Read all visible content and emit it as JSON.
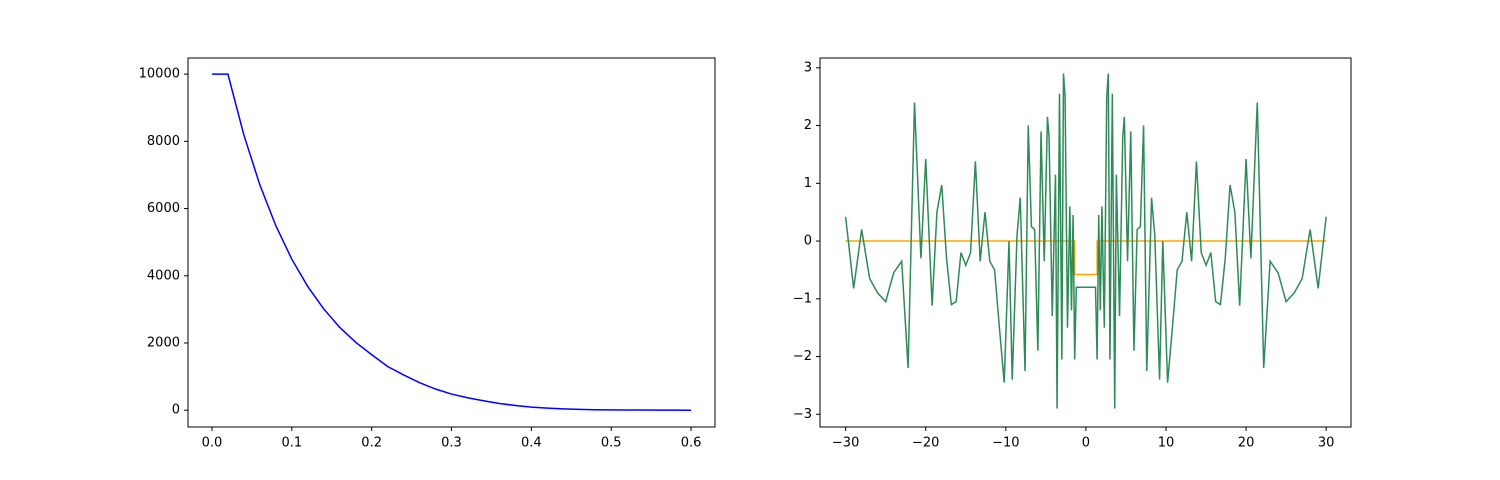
{
  "chart_data": [
    {
      "type": "line",
      "xlim": [
        -0.03,
        0.63
      ],
      "ylim": [
        -500,
        10480
      ],
      "xticks": [
        {
          "value": 0,
          "label": "0.0"
        },
        0.1,
        0.2,
        0.3,
        0.4,
        0.5,
        0.6
      ],
      "yticks": [
        0,
        2000,
        4000,
        6000,
        8000,
        10000
      ],
      "series": [
        {
          "color": "#0000ff",
          "x": [
            0,
            0.02,
            0.04,
            0.06,
            0.08,
            0.1,
            0.12,
            0.14,
            0.16,
            0.18,
            0.2,
            0.22,
            0.24,
            0.26,
            0.28,
            0.3,
            0.32,
            0.34,
            0.36,
            0.38,
            0.4,
            0.42,
            0.44,
            0.46,
            0.48,
            0.5,
            0.52,
            0.54,
            0.56,
            0.58,
            0.6
          ],
          "values": [
            10000,
            10000,
            8187,
            6703,
            5488,
            4493,
            3679,
            3012,
            2466,
            2019,
            1653,
            1300,
            1050,
            820,
            630,
            480,
            370,
            280,
            200,
            140,
            90,
            60,
            40,
            25,
            15,
            10,
            6,
            4,
            2,
            1,
            0
          ]
        }
      ]
    },
    {
      "type": "line",
      "xlim": [
        -33.2,
        33.1
      ],
      "ylim": [
        -3.22,
        3.17
      ],
      "xticks": [
        {
          "value": -30,
          "label": "−30"
        },
        {
          "value": -20,
          "label": "−20"
        },
        {
          "value": -10,
          "label": "−10"
        },
        0,
        10,
        20,
        30
      ],
      "yticks": [
        {
          "value": -3,
          "label": "−3"
        },
        {
          "value": -2,
          "label": "−2"
        },
        {
          "value": -1,
          "label": "−1"
        },
        0,
        1,
        2,
        3
      ],
      "series": [
        {
          "color": "#ffa500",
          "x": [
            -30,
            -1.4,
            -1.4,
            1.4,
            1.4,
            30
          ],
          "values": [
            0,
            0,
            -0.58,
            -0.58,
            0,
            0
          ]
        },
        {
          "color": "#2e8b57",
          "x": [
            -30,
            -29,
            -28,
            -27,
            -26,
            -25,
            -24,
            -23,
            -22.2,
            -21.4,
            -20.6,
            -20,
            -19.2,
            -18.6,
            -18,
            -17.4,
            -16.8,
            -16.2,
            -15.6,
            -15,
            -14.4,
            -13.8,
            -13.2,
            -12.6,
            -12,
            -11.4,
            -10.8,
            -10.2,
            -9.6,
            -9.2,
            -8.6,
            -8.2,
            -7.6,
            -7.2,
            -6.8,
            -6.4,
            -6,
            -5.6,
            -5.2,
            -4.8,
            -4.6,
            -4.2,
            -3.8,
            -3.6,
            -3.3,
            -3,
            -2.8,
            -2.6,
            -2.3,
            -2,
            -1.8,
            -1.6,
            -1.4,
            -1.2,
            0,
            1.2,
            1.4,
            1.6,
            1.8,
            2,
            2.3,
            2.6,
            2.8,
            3,
            3.3,
            3.6,
            3.8,
            4.2,
            4.6,
            4.8,
            5.2,
            5.6,
            6,
            6.4,
            6.8,
            7.2,
            7.6,
            8.2,
            8.6,
            9.2,
            9.6,
            10.2,
            10.8,
            11.4,
            12,
            12.6,
            13.2,
            13.8,
            14.4,
            15,
            15.6,
            16.2,
            16.8,
            17.4,
            18,
            18.6,
            19.2,
            20,
            20.6,
            21.4,
            22.2,
            23,
            24,
            25,
            26,
            27,
            28,
            29,
            30
          ],
          "values": [
            0.42,
            -0.82,
            0.2,
            -0.65,
            -0.9,
            -1.05,
            -0.55,
            -0.35,
            -2.2,
            2.4,
            -0.3,
            1.42,
            -1.12,
            0.5,
            0.97,
            -0.3,
            -1.1,
            -1.05,
            -0.2,
            -0.42,
            -0.2,
            1.38,
            -0.35,
            0.5,
            -0.35,
            -0.5,
            -1.5,
            -2.45,
            0,
            -2.4,
            0.1,
            0.75,
            -2.25,
            2.0,
            0.25,
            0.2,
            -1.9,
            1.9,
            -0.35,
            2.15,
            1.8,
            -1.3,
            1.15,
            -2.9,
            2.55,
            -2.05,
            2.9,
            2.5,
            -1.5,
            0.6,
            -1.2,
            0.45,
            -2.05,
            -0.8,
            -0.8,
            -0.8,
            -2.05,
            0.45,
            -1.2,
            0.6,
            -1.5,
            2.5,
            2.9,
            -2.05,
            2.55,
            -2.9,
            1.15,
            -1.3,
            1.8,
            2.15,
            -0.35,
            1.9,
            -1.9,
            0.2,
            0.25,
            2.0,
            -2.25,
            0.75,
            0.1,
            -2.4,
            0,
            -2.45,
            -1.5,
            -0.5,
            -0.35,
            0.5,
            -0.35,
            1.38,
            -0.2,
            -0.42,
            -0.2,
            -1.05,
            -1.1,
            -0.3,
            0.97,
            0.5,
            -1.12,
            1.42,
            -0.3,
            2.4,
            -2.2,
            -0.35,
            -0.55,
            -1.05,
            -0.9,
            -0.65,
            0.2,
            -0.82,
            0.42
          ]
        }
      ]
    }
  ]
}
